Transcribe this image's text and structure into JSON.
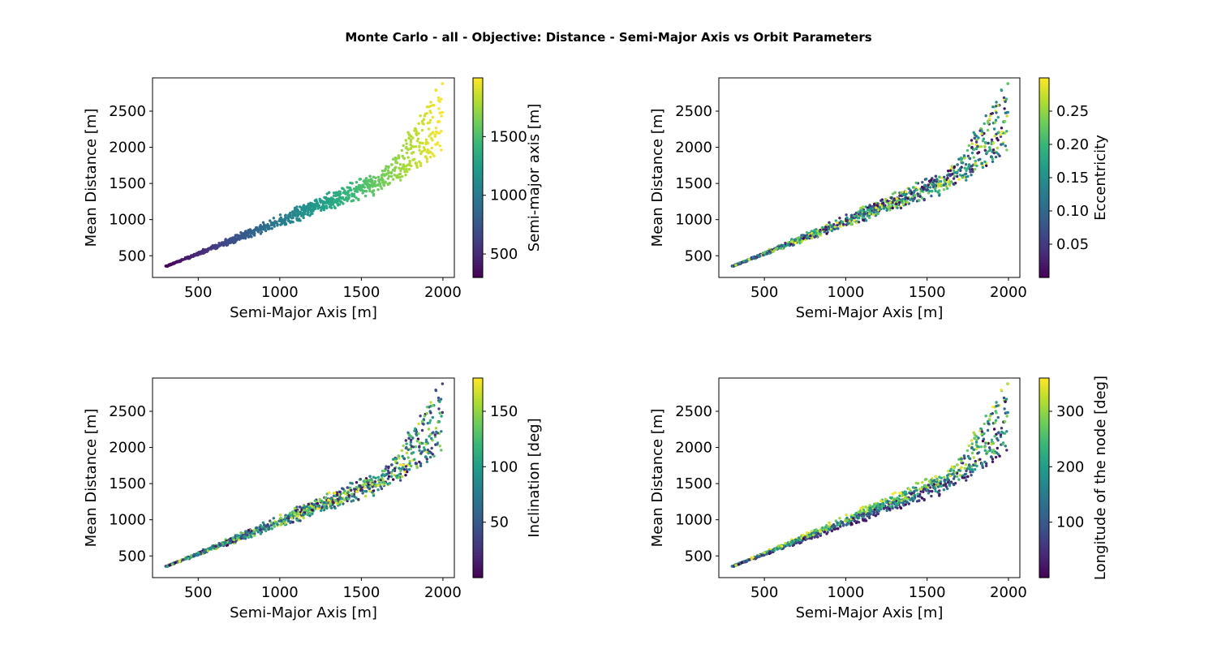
{
  "figure": {
    "suptitle": "Monte Carlo - all - Objective: Distance - Semi-Major Axis vs Orbit Parameters"
  },
  "chart_data": [
    {
      "type": "scatter",
      "xlabel": "Semi-Major Axis [m]",
      "ylabel": "Mean Distance [m]",
      "xlim": [
        220,
        2070
      ],
      "ylim": [
        200,
        2960
      ],
      "xticks": [
        500,
        1000,
        1500,
        2000
      ],
      "yticks": [
        500,
        1000,
        1500,
        2000,
        2500
      ],
      "colorbar": {
        "label": "Semi-major axis [m]",
        "range": [
          300,
          2000
        ],
        "ticks": [
          500,
          1000,
          1500
        ],
        "colormap": "viridis"
      },
      "color_variable": "semi_major_axis",
      "n_points": 1000
    },
    {
      "type": "scatter",
      "xlabel": "Semi-Major Axis [m]",
      "ylabel": "Mean Distance [m]",
      "xlim": [
        220,
        2070
      ],
      "ylim": [
        200,
        2960
      ],
      "xticks": [
        500,
        1000,
        1500,
        2000
      ],
      "yticks": [
        500,
        1000,
        1500,
        2000,
        2500
      ],
      "colorbar": {
        "label": "Eccentricity",
        "range": [
          0.0,
          0.3
        ],
        "ticks": [
          "0.05",
          "0.10",
          "0.15",
          "0.20",
          "0.25"
        ],
        "colormap": "viridis"
      },
      "color_variable": "eccentricity",
      "n_points": 1000
    },
    {
      "type": "scatter",
      "xlabel": "Semi-Major Axis [m]",
      "ylabel": "Mean Distance [m]",
      "xlim": [
        220,
        2070
      ],
      "ylim": [
        200,
        2960
      ],
      "xticks": [
        500,
        1000,
        1500,
        2000
      ],
      "yticks": [
        500,
        1000,
        1500,
        2000,
        2500
      ],
      "colorbar": {
        "label": "Inclination [deg]",
        "range": [
          0,
          180
        ],
        "ticks": [
          50,
          100,
          150
        ],
        "colormap": "viridis"
      },
      "color_variable": "inclination",
      "n_points": 1000
    },
    {
      "type": "scatter",
      "xlabel": "Semi-Major Axis [m]",
      "ylabel": "Mean Distance [m]",
      "xlim": [
        220,
        2070
      ],
      "ylim": [
        200,
        2960
      ],
      "xticks": [
        500,
        1000,
        1500,
        2000
      ],
      "yticks": [
        500,
        1000,
        1500,
        2000,
        2500
      ],
      "colorbar": {
        "label": "Longitude of the node [deg]",
        "range": [
          0,
          360
        ],
        "ticks": [
          100,
          200,
          300
        ],
        "colormap": "viridis"
      },
      "color_variable": "longitude_of_node",
      "n_points": 1000
    }
  ]
}
